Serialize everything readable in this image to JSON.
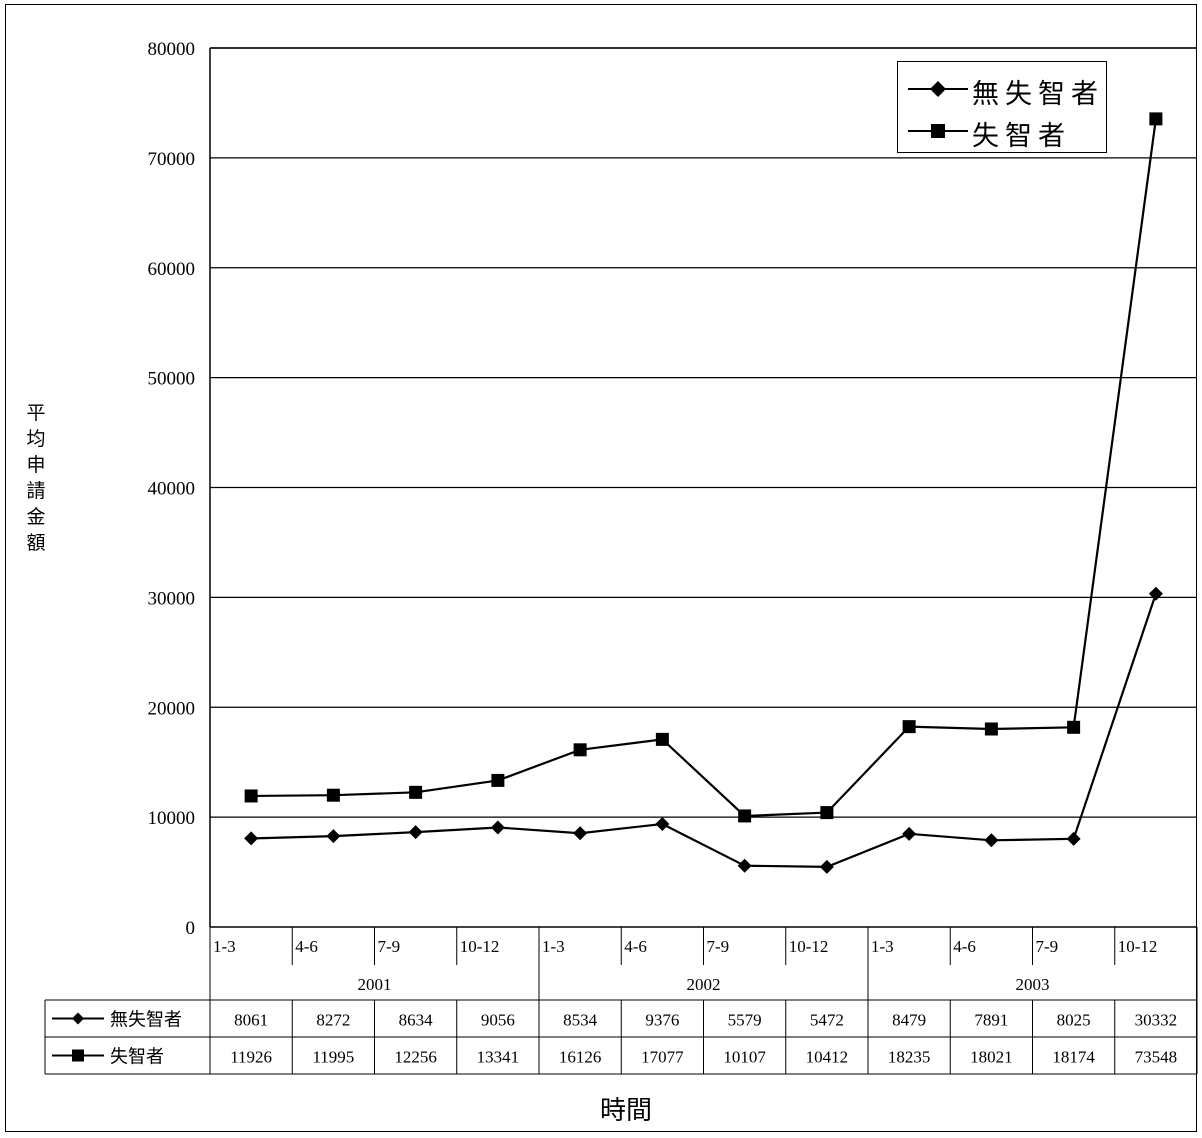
{
  "chart_data": {
    "type": "line",
    "ylabel": "平均申請金額",
    "xlabel": "時間",
    "ylim": [
      0,
      80000
    ],
    "yticks": [
      0,
      10000,
      20000,
      30000,
      40000,
      50000,
      60000,
      70000,
      80000
    ],
    "grid": true,
    "legend_position": "top-right",
    "categories": [
      "1-3",
      "4-6",
      "7-9",
      "10-12",
      "1-3",
      "4-6",
      "7-9",
      "10-12",
      "1-3",
      "4-6",
      "7-9",
      "10-12"
    ],
    "groups": [
      {
        "label": "2001",
        "span": 4
      },
      {
        "label": "2002",
        "span": 4
      },
      {
        "label": "2003",
        "span": 4
      }
    ],
    "series": [
      {
        "name": "無失智者",
        "marker": "diamond",
        "values": [
          8061,
          8272,
          8634,
          9056,
          8534,
          9376,
          5579,
          5472,
          8479,
          7891,
          8025,
          30332
        ]
      },
      {
        "name": "失智者",
        "marker": "square",
        "values": [
          11926,
          11995,
          12256,
          13341,
          16126,
          17077,
          10107,
          10412,
          18235,
          18021,
          18174,
          73548
        ]
      }
    ]
  }
}
